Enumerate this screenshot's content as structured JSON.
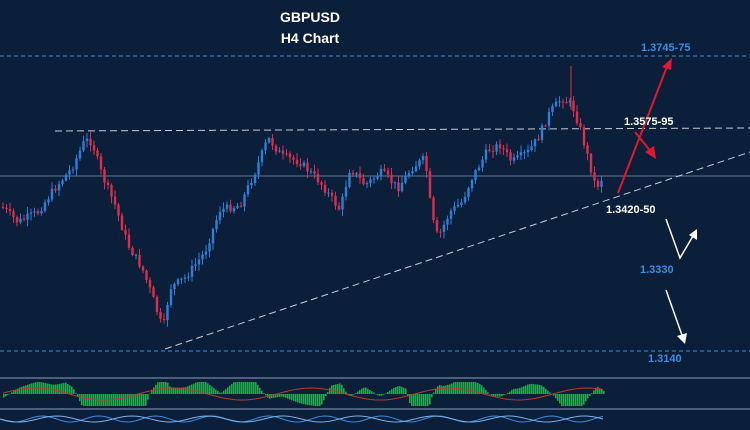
{
  "chart_data": {
    "type": "candlestick",
    "title": "GBPUSD",
    "subtitle": "H4 Chart",
    "x": [],
    "series": [],
    "ylim": [
      1.31,
      1.38
    ],
    "levels": [
      {
        "label": "1.3745-75",
        "price": 1.3775,
        "color": "#3a8de0"
      },
      {
        "label": "1.3575-95",
        "price": 1.359,
        "color": "#ffffff"
      },
      {
        "label": "1.3420-50",
        "price": 1.3435,
        "color": "#ffffff"
      },
      {
        "label": "1.3330",
        "price": 1.333,
        "color": "#3a8de0"
      },
      {
        "label": "1.3140",
        "price": 1.314,
        "color": "#3a8de0"
      }
    ],
    "trendlines": [
      "resistance-dashed",
      "ascending-support-dashed"
    ],
    "scenario_arrows": [
      {
        "color": "red",
        "direction": "up",
        "target": "1.3745-75"
      },
      {
        "color": "red",
        "direction": "down",
        "target": "1.3575-95"
      },
      {
        "color": "white",
        "direction": "down-up",
        "target": "1.3330"
      },
      {
        "color": "white",
        "direction": "down",
        "target": "1.3140"
      }
    ],
    "colors": {
      "background": "#0b1f3b",
      "bull": "#2e7fd8",
      "bear": "#d8304a",
      "histogram": "#22a84a"
    },
    "grid": false,
    "legend": "none"
  }
}
